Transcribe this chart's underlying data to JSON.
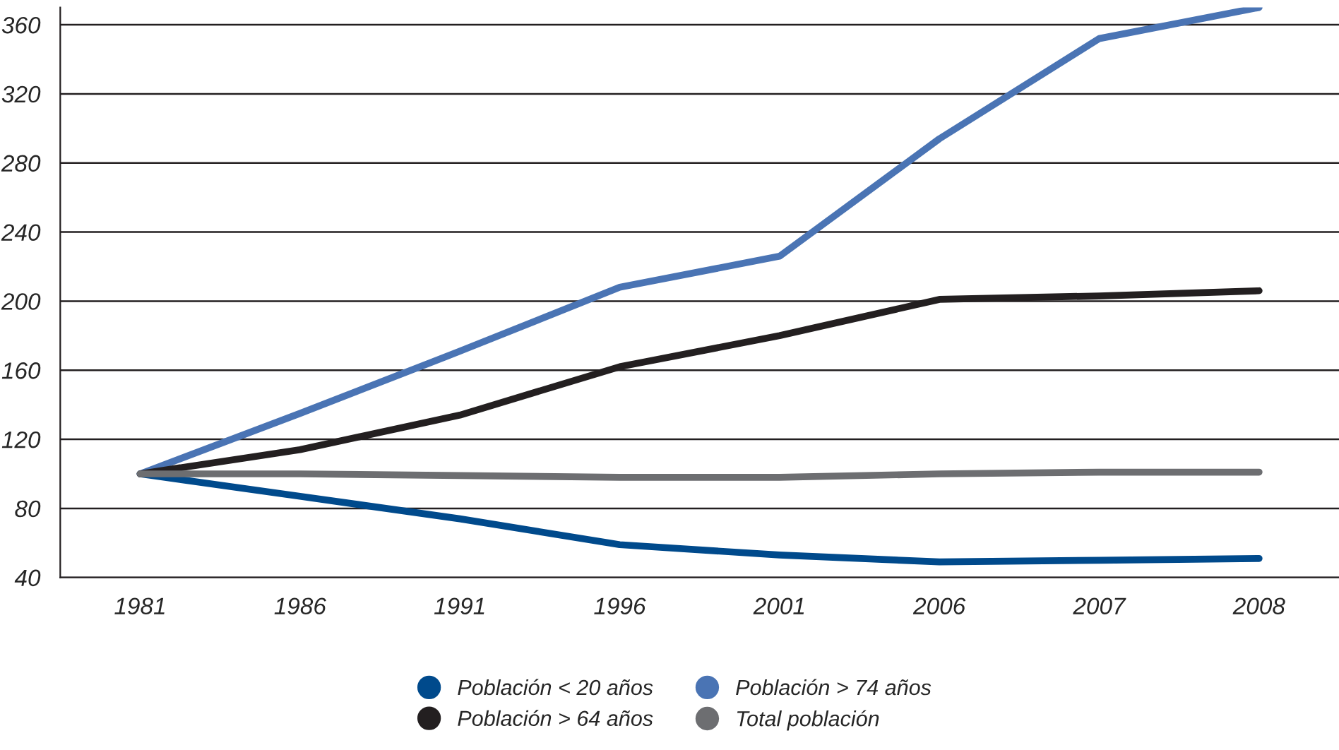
{
  "chart_data": {
    "type": "line",
    "categories": [
      "1981",
      "1986",
      "1991",
      "1996",
      "2001",
      "2006",
      "2007",
      "2008"
    ],
    "series": [
      {
        "name": "Población < 20 años",
        "color": "#004a8c",
        "values": [
          100,
          87,
          74,
          59,
          53,
          49,
          50,
          51
        ]
      },
      {
        "name": "Población > 74 años",
        "color": "#4a74b4",
        "values": [
          100,
          135,
          171,
          208,
          226,
          294,
          352,
          370
        ]
      },
      {
        "name": "Población > 64 años",
        "color": "#231f20",
        "values": [
          100,
          114,
          134,
          162,
          180,
          201,
          203,
          206
        ]
      },
      {
        "name": "Total población",
        "color": "#6d6e71",
        "values": [
          100,
          100,
          99,
          98,
          98,
          100,
          101,
          101
        ]
      }
    ],
    "ylim": [
      40,
      370
    ],
    "yticks": [
      40,
      80,
      120,
      160,
      200,
      240,
      280,
      320,
      360
    ],
    "grid": "y",
    "legend": "bottom",
    "marker": "none",
    "line_style": "solid"
  }
}
